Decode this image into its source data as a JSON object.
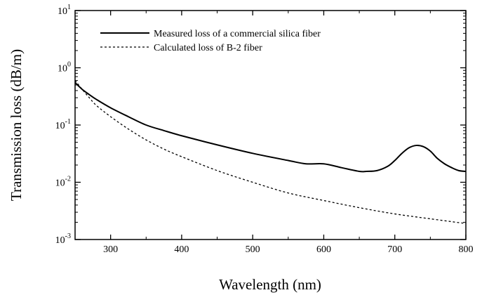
{
  "chart_data": {
    "type": "line",
    "title": "",
    "xlabel": "Wavelength (nm)",
    "ylabel": "Transmission loss (dB/m)",
    "xlim": [
      250,
      800
    ],
    "ylim": [
      0.001,
      10
    ],
    "yscale": "log",
    "grid": false,
    "legend_position": "top-right",
    "x_ticks": [
      300,
      400,
      500,
      600,
      700,
      800
    ],
    "x_tick_labels": [
      "300",
      "400",
      "500",
      "600",
      "700",
      "800"
    ],
    "y_ticks": [
      0.001,
      0.01,
      0.1,
      1,
      10
    ],
    "y_tick_labels": [
      {
        "base": "10",
        "exp": "-3"
      },
      {
        "base": "10",
        "exp": "-2"
      },
      {
        "base": "10",
        "exp": "-1"
      },
      {
        "base": "10",
        "exp": "0"
      },
      {
        "base": "10",
        "exp": "1"
      }
    ],
    "series": [
      {
        "name": "Measured loss of a commercial silica fiber",
        "style": "solid",
        "color": "#000000",
        "x": [
          250,
          260,
          270,
          280,
          300,
          325,
          350,
          375,
          400,
          450,
          500,
          550,
          575,
          600,
          625,
          650,
          660,
          675,
          690,
          700,
          710,
          720,
          730,
          740,
          750,
          760,
          770,
          780,
          790,
          800
        ],
        "y": [
          0.55,
          0.42,
          0.34,
          0.28,
          0.2,
          0.14,
          0.1,
          0.08,
          0.065,
          0.045,
          0.032,
          0.024,
          0.021,
          0.021,
          0.018,
          0.0155,
          0.0155,
          0.016,
          0.019,
          0.024,
          0.032,
          0.04,
          0.044,
          0.042,
          0.035,
          0.026,
          0.021,
          0.018,
          0.016,
          0.0155
        ]
      },
      {
        "name": "Calculated loss of B-2 fiber",
        "style": "dashed",
        "color": "#000000",
        "x": [
          250,
          260,
          270,
          280,
          300,
          325,
          350,
          375,
          400,
          450,
          500,
          550,
          600,
          650,
          700,
          750,
          800
        ],
        "y": [
          0.6,
          0.42,
          0.3,
          0.22,
          0.14,
          0.085,
          0.055,
          0.038,
          0.028,
          0.016,
          0.01,
          0.0065,
          0.0048,
          0.0036,
          0.0028,
          0.0023,
          0.0019
        ]
      }
    ]
  }
}
